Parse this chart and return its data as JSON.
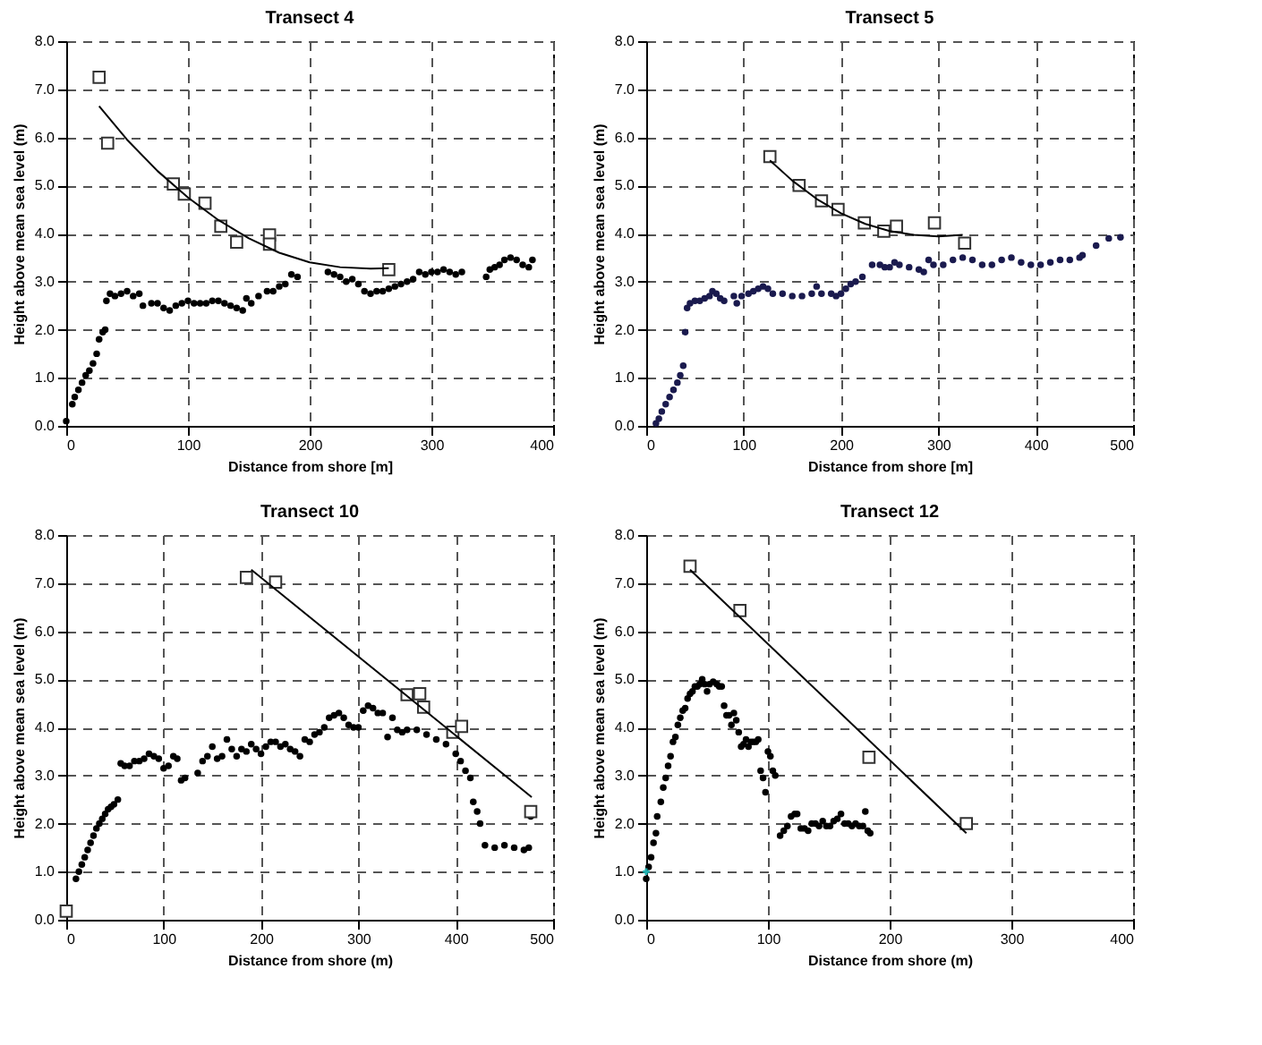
{
  "chart_data": [
    {
      "type": "scatter",
      "title": "Transect 4",
      "xlabel": "Distance from shore [m]",
      "ylabel": "Height above mean sea level (m)",
      "xlim": [
        0,
        400
      ],
      "xticks": [
        0,
        100,
        200,
        300,
        400
      ],
      "ylim": [
        0,
        8
      ],
      "yticks": [
        {
          "value": 0,
          "label": "0.0"
        },
        {
          "value": 1,
          "label": "1.0"
        },
        {
          "value": 2,
          "label": "2.0"
        },
        {
          "value": 3,
          "label": "3.0"
        },
        {
          "value": 4,
          "label": "4.0"
        },
        {
          "value": 5,
          "label": "5.0"
        },
        {
          "value": 6,
          "label": "6.0"
        },
        {
          "value": 7,
          "label": "7.0"
        },
        {
          "value": 8,
          "label": "8.0"
        }
      ],
      "grid": true,
      "series": [
        {
          "type": "scatter",
          "marker": "circle",
          "color": "#000000",
          "x": [
            0,
            5,
            7,
            10,
            13,
            16,
            19,
            22,
            25,
            27,
            30,
            32,
            33,
            36,
            40,
            45,
            50,
            55,
            60,
            63,
            70,
            75,
            80,
            85,
            90,
            95,
            100,
            105,
            110,
            115,
            120,
            125,
            130,
            135,
            140,
            145,
            148,
            152,
            158,
            165,
            170,
            175,
            180,
            185,
            190,
            215,
            220,
            225,
            230,
            235,
            240,
            245,
            250,
            255,
            260,
            265,
            270,
            275,
            280,
            285,
            290,
            295,
            300,
            305,
            310,
            315,
            320,
            325,
            345,
            348,
            352,
            356,
            360,
            365,
            370,
            375,
            380,
            383
          ],
          "values": [
            0.1,
            0.45,
            0.6,
            0.75,
            0.9,
            1.05,
            1.15,
            1.3,
            1.5,
            1.8,
            1.95,
            2.0,
            2.6,
            2.75,
            2.7,
            2.75,
            2.8,
            2.7,
            2.75,
            2.5,
            2.55,
            2.55,
            2.45,
            2.4,
            2.5,
            2.55,
            2.6,
            2.55,
            2.55,
            2.55,
            2.6,
            2.6,
            2.55,
            2.5,
            2.45,
            2.4,
            2.65,
            2.55,
            2.7,
            2.8,
            2.8,
            2.9,
            2.95,
            3.15,
            3.1,
            3.2,
            3.15,
            3.1,
            3.0,
            3.05,
            2.95,
            2.8,
            2.75,
            2.8,
            2.8,
            2.85,
            2.9,
            2.95,
            3.0,
            3.05,
            3.2,
            3.15,
            3.2,
            3.2,
            3.25,
            3.2,
            3.15,
            3.2,
            3.1,
            3.25,
            3.3,
            3.35,
            3.45,
            3.5,
            3.45,
            3.35,
            3.3,
            3.45
          ]
        },
        {
          "type": "scatter",
          "marker": "square",
          "color": "#333333",
          "x": [
            27,
            34,
            88,
            97,
            114,
            127,
            140,
            167,
            167,
            265
          ],
          "values": [
            7.25,
            5.88,
            5.03,
            4.82,
            4.63,
            4.15,
            3.82,
            3.97,
            3.78,
            3.25
          ]
        },
        {
          "type": "line",
          "marker": "none",
          "color": "#000000",
          "x": [
            27,
            50,
            75,
            100,
            125,
            150,
            175,
            200,
            225,
            250,
            265
          ],
          "values": [
            6.65,
            5.95,
            5.3,
            4.75,
            4.28,
            3.9,
            3.6,
            3.4,
            3.3,
            3.27,
            3.28
          ]
        }
      ]
    },
    {
      "type": "scatter",
      "title": "Transect 5",
      "xlabel": "Distance from shore [m]",
      "ylabel": "Height above mean sea level (m)",
      "xlim": [
        0,
        500
      ],
      "xticks": [
        0,
        100,
        200,
        300,
        400,
        500
      ],
      "ylim": [
        0,
        8
      ],
      "yticks": [
        {
          "value": 0,
          "label": "0.0"
        },
        {
          "value": 1,
          "label": "1.0"
        },
        {
          "value": 2,
          "label": "2.0"
        },
        {
          "value": 3,
          "label": "3.0"
        },
        {
          "value": 4,
          "label": "4.0"
        },
        {
          "value": 5,
          "label": "5.0"
        },
        {
          "value": 6,
          "label": "6.0"
        },
        {
          "value": 7,
          "label": "7.0"
        },
        {
          "value": 8,
          "label": "8.0"
        }
      ],
      "grid": true,
      "series": [
        {
          "type": "scatter",
          "marker": "circle",
          "color": "#1a1a4e",
          "x": [
            10,
            13,
            16,
            20,
            24,
            28,
            32,
            35,
            38,
            40,
            42,
            45,
            50,
            55,
            60,
            65,
            68,
            72,
            76,
            80,
            90,
            93,
            98,
            105,
            110,
            115,
            120,
            125,
            130,
            140,
            150,
            160,
            170,
            175,
            180,
            190,
            195,
            200,
            205,
            210,
            215,
            222,
            232,
            240,
            245,
            250,
            255,
            260,
            270,
            280,
            285,
            290,
            295,
            305,
            315,
            325,
            335,
            345,
            355,
            365,
            375,
            385,
            395,
            405,
            415,
            425,
            435,
            445,
            448,
            462,
            475,
            487
          ],
          "values": [
            0.05,
            0.15,
            0.3,
            0.45,
            0.6,
            0.75,
            0.9,
            1.05,
            1.25,
            1.95,
            2.45,
            2.55,
            2.6,
            2.6,
            2.65,
            2.7,
            2.8,
            2.75,
            2.65,
            2.6,
            2.7,
            2.55,
            2.7,
            2.75,
            2.8,
            2.85,
            2.9,
            2.85,
            2.75,
            2.75,
            2.7,
            2.7,
            2.75,
            2.9,
            2.75,
            2.75,
            2.7,
            2.75,
            2.85,
            2.95,
            3.0,
            3.1,
            3.35,
            3.35,
            3.3,
            3.3,
            3.4,
            3.35,
            3.3,
            3.25,
            3.2,
            3.45,
            3.35,
            3.35,
            3.45,
            3.5,
            3.45,
            3.35,
            3.35,
            3.45,
            3.5,
            3.4,
            3.35,
            3.35,
            3.4,
            3.45,
            3.45,
            3.5,
            3.55,
            3.75,
            3.9,
            3.92
          ]
        },
        {
          "type": "scatter",
          "marker": "square",
          "color": "#333333",
          "x": [
            127,
            157,
            180,
            197,
            224,
            244,
            257,
            296,
            327
          ],
          "values": [
            5.6,
            5.0,
            4.68,
            4.5,
            4.22,
            4.05,
            4.15,
            4.22,
            3.8
          ]
        },
        {
          "type": "line",
          "marker": "none",
          "color": "#000000",
          "x": [
            127,
            150,
            175,
            200,
            225,
            250,
            275,
            300,
            325
          ],
          "values": [
            5.52,
            5.1,
            4.72,
            4.42,
            4.2,
            4.05,
            3.97,
            3.94,
            3.97
          ]
        }
      ]
    },
    {
      "type": "scatter",
      "title": "Transect 10",
      "xlabel": "Distance from shore (m)",
      "ylabel": "Height above mean sea level (m)",
      "xlim": [
        0,
        500
      ],
      "xticks": [
        0,
        100,
        200,
        300,
        400,
        500
      ],
      "ylim": [
        0,
        8
      ],
      "yticks": [
        {
          "value": 0,
          "label": "0.0"
        },
        {
          "value": 1,
          "label": "1.0"
        },
        {
          "value": 2,
          "label": "2.0"
        },
        {
          "value": 3,
          "label": "3.0"
        },
        {
          "value": 4,
          "label": "4.0"
        },
        {
          "value": 5,
          "label": "5.0"
        },
        {
          "value": 6,
          "label": "6.0"
        },
        {
          "value": 7,
          "label": "7.0"
        },
        {
          "value": 8,
          "label": "8.0"
        }
      ],
      "grid": true,
      "series": [
        {
          "type": "scatter",
          "marker": "circle",
          "color": "#000000",
          "x": [
            10,
            13,
            16,
            19,
            22,
            25,
            28,
            31,
            34,
            37,
            40,
            43,
            46,
            49,
            53,
            56,
            60,
            65,
            70,
            75,
            80,
            85,
            90,
            95,
            100,
            105,
            110,
            114,
            118,
            122,
            135,
            140,
            145,
            150,
            155,
            160,
            165,
            170,
            175,
            180,
            185,
            190,
            195,
            200,
            205,
            210,
            215,
            220,
            225,
            230,
            235,
            240,
            245,
            250,
            255,
            260,
            265,
            270,
            275,
            280,
            285,
            290,
            295,
            300,
            305,
            310,
            315,
            320,
            325,
            330,
            335,
            340,
            345,
            350,
            360,
            370,
            380,
            390,
            400,
            405,
            410,
            415,
            418,
            422,
            425,
            430,
            440,
            450,
            460,
            470,
            475,
            477
          ],
          "values": [
            0.85,
            1.0,
            1.15,
            1.3,
            1.45,
            1.6,
            1.75,
            1.9,
            2.0,
            2.1,
            2.2,
            2.3,
            2.35,
            2.4,
            2.5,
            3.25,
            3.2,
            3.2,
            3.3,
            3.3,
            3.35,
            3.45,
            3.4,
            3.35,
            3.15,
            3.2,
            3.4,
            3.35,
            2.9,
            2.95,
            3.05,
            3.3,
            3.4,
            3.6,
            3.35,
            3.4,
            3.75,
            3.55,
            3.4,
            3.55,
            3.5,
            3.65,
            3.55,
            3.45,
            3.6,
            3.7,
            3.7,
            3.6,
            3.65,
            3.55,
            3.5,
            3.4,
            3.75,
            3.7,
            3.85,
            3.9,
            4.0,
            4.2,
            4.25,
            4.3,
            4.2,
            4.05,
            4.0,
            4.0,
            4.35,
            4.45,
            4.4,
            4.3,
            4.3,
            3.8,
            4.2,
            3.95,
            3.9,
            3.95,
            3.95,
            3.85,
            3.75,
            3.65,
            3.45,
            3.3,
            3.1,
            2.95,
            2.45,
            2.25,
            2.0,
            1.55,
            1.5,
            1.55,
            1.5,
            1.45,
            1.5,
            2.15
          ]
        },
        {
          "type": "scatter",
          "marker": "square",
          "color": "#333333",
          "x": [
            0,
            185,
            215,
            350,
            363,
            367,
            397,
            406,
            477
          ],
          "values": [
            0.18,
            7.12,
            7.02,
            4.68,
            4.7,
            4.42,
            3.9,
            4.02,
            2.25
          ]
        },
        {
          "type": "line",
          "marker": "none",
          "color": "#000000",
          "x": [
            190,
            478
          ],
          "values": [
            7.28,
            2.55
          ]
        }
      ]
    },
    {
      "type": "scatter",
      "title": "Transect 12",
      "xlabel": "Distance from shore (m)",
      "ylabel": "Height above mean sea level (m)",
      "xlim": [
        0,
        400
      ],
      "xticks": [
        0,
        100,
        200,
        300,
        400
      ],
      "ylim": [
        0,
        8
      ],
      "yticks": [
        {
          "value": 0,
          "label": "0.0"
        },
        {
          "value": 1,
          "label": "1.0"
        },
        {
          "value": 2,
          "label": "2.0"
        },
        {
          "value": 3,
          "label": "3.0"
        },
        {
          "value": 4,
          "label": "4.0"
        },
        {
          "value": 5,
          "label": "5.0"
        },
        {
          "value": 6,
          "label": "6.0"
        },
        {
          "value": 7,
          "label": "7.0"
        },
        {
          "value": 8,
          "label": "8.0"
        }
      ],
      "grid": true,
      "series": [
        {
          "type": "scatter",
          "marker": "circle",
          "color": "#000000",
          "x": [
            0,
            2,
            4,
            6,
            8,
            9,
            12,
            14,
            16,
            18,
            20,
            22,
            24,
            26,
            28,
            30,
            32,
            34,
            36,
            38,
            40,
            42,
            44,
            46,
            48,
            50,
            52,
            55,
            58,
            60,
            62,
            64,
            66,
            68,
            70,
            72,
            74,
            76,
            78,
            80,
            82,
            84,
            86,
            88,
            90,
            92,
            94,
            96,
            98,
            100,
            102,
            104,
            106,
            110,
            113,
            116,
            119,
            122,
            124,
            127,
            130,
            133,
            136,
            139,
            142,
            145,
            148,
            151,
            154,
            157,
            160,
            163,
            166,
            169,
            172,
            175,
            178,
            180,
            182,
            184
          ],
          "values": [
            0.85,
            1.1,
            1.3,
            1.6,
            1.8,
            2.15,
            2.45,
            2.75,
            2.95,
            3.2,
            3.4,
            3.7,
            3.8,
            4.05,
            4.2,
            4.35,
            4.4,
            4.6,
            4.7,
            4.75,
            4.85,
            4.85,
            4.9,
            5.0,
            4.9,
            4.75,
            4.9,
            4.95,
            4.9,
            4.85,
            4.85,
            4.45,
            4.25,
            4.25,
            4.05,
            4.3,
            4.15,
            3.9,
            3.6,
            3.65,
            3.75,
            3.6,
            3.7,
            3.7,
            3.7,
            3.75,
            3.1,
            2.95,
            2.65,
            3.5,
            3.4,
            3.1,
            3.0,
            1.75,
            1.85,
            1.95,
            2.15,
            2.2,
            2.2,
            1.9,
            1.9,
            1.85,
            2.0,
            2.0,
            1.95,
            2.05,
            1.95,
            1.95,
            2.05,
            2.1,
            2.2,
            2.0,
            2.0,
            1.95,
            2.0,
            1.95,
            1.95,
            2.25,
            1.85,
            1.8
          ]
        },
        {
          "type": "scatter",
          "marker": "cross",
          "color": "#20b0b0",
          "x": [
            0
          ],
          "values": [
            1.0
          ]
        },
        {
          "type": "scatter",
          "marker": "square",
          "color": "#333333",
          "x": [
            36,
            77,
            183,
            263
          ],
          "values": [
            7.35,
            6.43,
            3.38,
            2.0
          ]
        },
        {
          "type": "line",
          "marker": "none",
          "color": "#000000",
          "x": [
            36,
            263
          ],
          "values": [
            7.28,
            1.8
          ]
        }
      ]
    }
  ]
}
